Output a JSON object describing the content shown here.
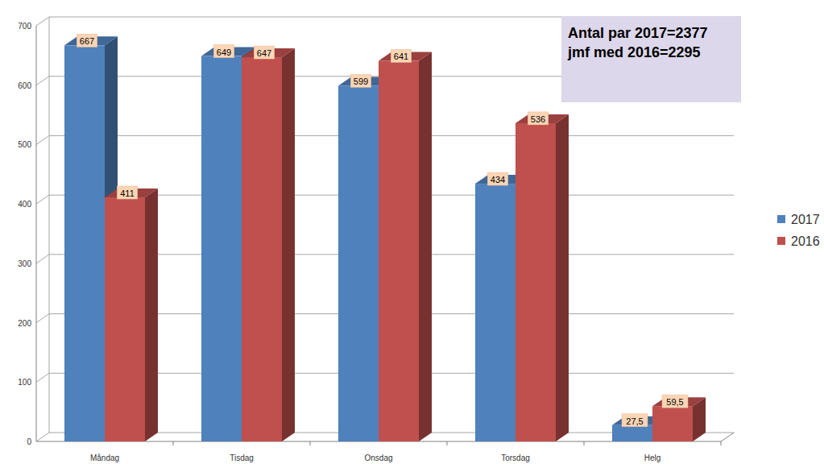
{
  "chart_data": {
    "type": "bar",
    "categories": [
      "Måndag",
      "Tisdag",
      "Onsdag",
      "Torsdag",
      "Helg"
    ],
    "series": [
      {
        "name": "2017",
        "color": "#4f81bd",
        "values": [
          667,
          649,
          599,
          434,
          27.5
        ],
        "value_labels": [
          "667",
          "649",
          "599",
          "434",
          "27,5"
        ]
      },
      {
        "name": "2016",
        "color": "#c0504d",
        "values": [
          411,
          647,
          641,
          536,
          59.5
        ],
        "value_labels": [
          "411",
          "647",
          "641",
          "536",
          "59,5"
        ]
      }
    ],
    "ylim": [
      0,
      700
    ],
    "yticks": [
      0,
      100,
      200,
      300,
      400,
      500,
      600,
      700
    ],
    "grid": true,
    "legend": "right",
    "data_labels": true,
    "annotations": [
      "Antal par 2017=2377",
      "jmf med 2016=2295"
    ]
  }
}
